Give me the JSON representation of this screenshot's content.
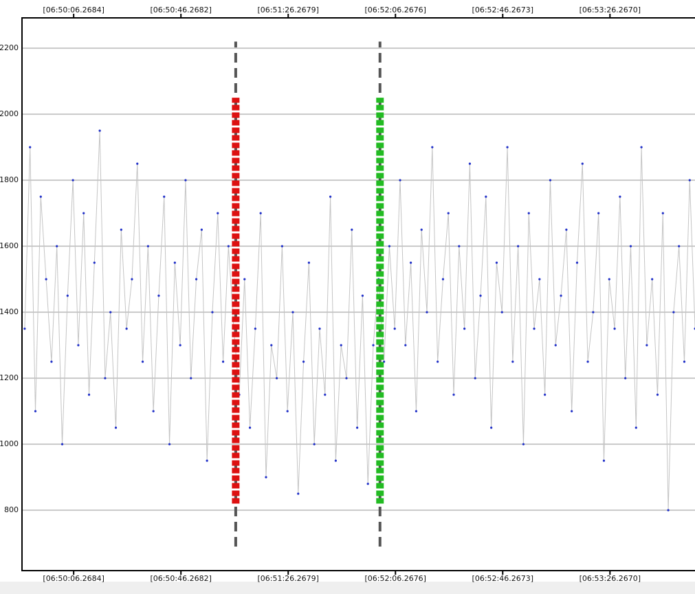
{
  "chart_data": {
    "type": "line",
    "x": [
      -12,
      -10,
      -8,
      -6,
      -4,
      -2,
      0,
      2,
      4,
      6,
      8,
      10,
      12,
      14,
      16,
      18,
      20,
      22,
      24,
      26,
      28,
      30,
      32,
      34,
      36,
      38,
      40,
      42,
      44,
      46,
      48,
      50,
      52,
      54,
      56,
      58,
      60,
      62,
      64,
      66,
      68,
      70,
      72,
      74,
      76,
      78,
      80,
      82,
      84,
      86,
      88,
      90,
      92,
      94,
      96,
      98,
      100,
      102,
      104,
      106,
      108,
      110,
      112,
      114,
      116,
      118,
      120,
      122,
      124,
      126,
      128,
      130,
      132,
      134,
      136,
      138,
      140,
      142,
      144,
      146,
      148,
      150,
      152,
      154,
      156,
      158,
      160,
      162,
      164,
      166,
      168,
      170,
      172,
      174,
      176,
      178,
      180,
      182,
      184,
      186,
      188,
      190,
      192,
      194,
      196,
      198,
      200,
      202,
      204,
      206,
      208,
      210,
      212,
      214,
      216,
      218,
      220,
      222,
      224,
      226,
      228,
      230,
      232,
      234,
      236,
      238
    ],
    "series": [
      {
        "line_color": "#c4c4c4",
        "color": "#1f2fc8",
        "values": [
          1350,
          1900,
          1100,
          1750,
          1500,
          1250,
          1600,
          1000,
          1450,
          1800,
          1300,
          1700,
          1150,
          1550,
          1950,
          1200,
          1400,
          1050,
          1650,
          1350,
          1500,
          1850,
          1250,
          1600,
          1100,
          1450,
          1750,
          1000,
          1550,
          1300,
          1800,
          1200,
          1500,
          1650,
          950,
          1400,
          1700,
          1250,
          1600,
          1350,
          1150,
          1500,
          1050,
          1350,
          1700,
          900,
          1300,
          1200,
          1600,
          1100,
          1400,
          850,
          1250,
          1550,
          1000,
          1350,
          1150,
          1750,
          950,
          1300,
          1200,
          1650,
          1050,
          1450,
          880,
          1300,
          1500,
          1250,
          1600,
          1350,
          1800,
          1300,
          1550,
          1100,
          1650,
          1400,
          1900,
          1250,
          1500,
          1700,
          1150,
          1600,
          1350,
          1850,
          1200,
          1450,
          1750,
          1050,
          1550,
          1400,
          1900,
          1250,
          1600,
          1000,
          1700,
          1350,
          1500,
          1150,
          1800,
          1300,
          1450,
          1650,
          1100,
          1550,
          1850,
          1250,
          1400,
          1700,
          950,
          1500,
          1350,
          1750,
          1200,
          1600,
          1050,
          1900,
          1300,
          1500,
          1150,
          1700,
          800,
          1400,
          1600,
          1250,
          1800,
          1350
        ]
      }
    ],
    "xlim": [
      -13,
      239
    ],
    "xticks": [
      {
        "value": 6.2684,
        "label": "[06:50:06.2684]"
      },
      {
        "value": 46.2682,
        "label": "[06:50:46.2682]"
      },
      {
        "value": 86.2679,
        "label": "[06:51:26.2679]"
      },
      {
        "value": 126.2676,
        "label": "[06:52:06.2676]"
      },
      {
        "value": 166.2673,
        "label": "[06:52:46.2673]"
      },
      {
        "value": 206.267,
        "label": "[06:53:26.2670]"
      }
    ],
    "ylim": [
      617,
      2292
    ],
    "yticks": [
      800,
      1000,
      1200,
      1400,
      1600,
      1800,
      2000,
      2200
    ],
    "grid": true,
    "cursors": [
      {
        "x": 66.7,
        "color": "#dd1111",
        "range": [
          820,
          2050
        ],
        "extent": [
          690,
          2220
        ]
      },
      {
        "x": 120.5,
        "color": "#22bb22",
        "range": [
          820,
          2050
        ],
        "extent": [
          690,
          2220
        ]
      }
    ]
  }
}
